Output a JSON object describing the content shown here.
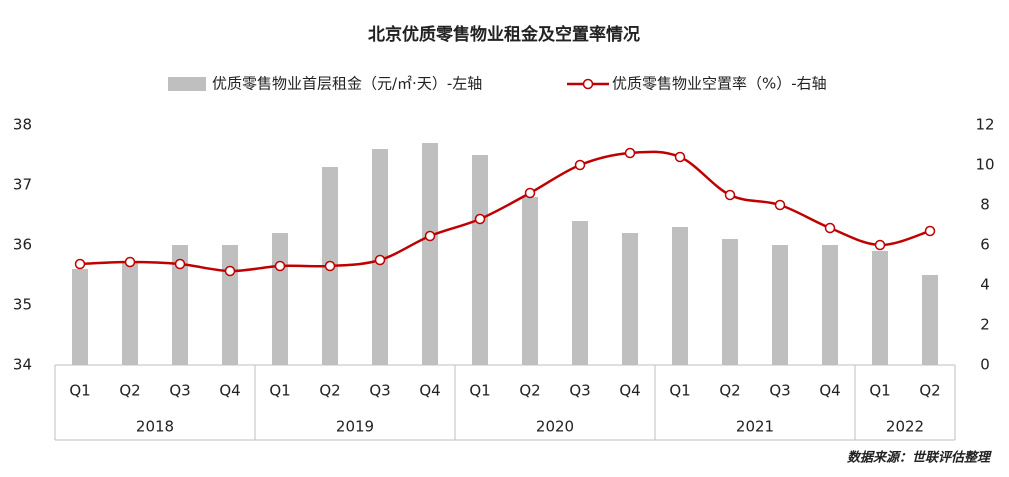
{
  "chart_data": {
    "type": "bar-line",
    "title": "北京优质零售物业租金及空置率情况",
    "source": "数据来源：世联评估整理",
    "categories": [
      "Q1",
      "Q2",
      "Q3",
      "Q4",
      "Q1",
      "Q2",
      "Q3",
      "Q4",
      "Q1",
      "Q2",
      "Q3",
      "Q4",
      "Q1",
      "Q2",
      "Q3",
      "Q4",
      "Q1",
      "Q2"
    ],
    "groups": [
      {
        "label": "2018",
        "count": 4
      },
      {
        "label": "2019",
        "count": 4
      },
      {
        "label": "2020",
        "count": 4
      },
      {
        "label": "2021",
        "count": 4
      },
      {
        "label": "2022",
        "count": 2
      }
    ],
    "series": [
      {
        "name": "优质零售物业首层租金（元/㎡·天）-左轴",
        "type": "bar",
        "color": "#bfbfbf",
        "values": [
          35.6,
          35.7,
          36.0,
          36.0,
          36.2,
          37.3,
          37.6,
          37.7,
          37.5,
          36.8,
          36.4,
          36.2,
          36.3,
          36.1,
          36.0,
          36.0,
          35.9,
          35.5
        ]
      },
      {
        "name": "优质零售物业空置率（%）-右轴",
        "type": "line",
        "axis": "y2",
        "color": "#c00000",
        "values": [
          5.05,
          5.15,
          5.05,
          4.7,
          4.95,
          4.95,
          5.25,
          6.45,
          7.3,
          8.6,
          10.0,
          10.6,
          10.4,
          8.5,
          8.0,
          6.85,
          6.0,
          6.7
        ]
      }
    ],
    "ylim": [
      34,
      38
    ],
    "yticks": [
      34,
      35,
      36,
      37,
      38
    ],
    "y2lim": [
      0,
      12
    ],
    "y2ticks": [
      0,
      2,
      4,
      6,
      8,
      10,
      12
    ]
  }
}
